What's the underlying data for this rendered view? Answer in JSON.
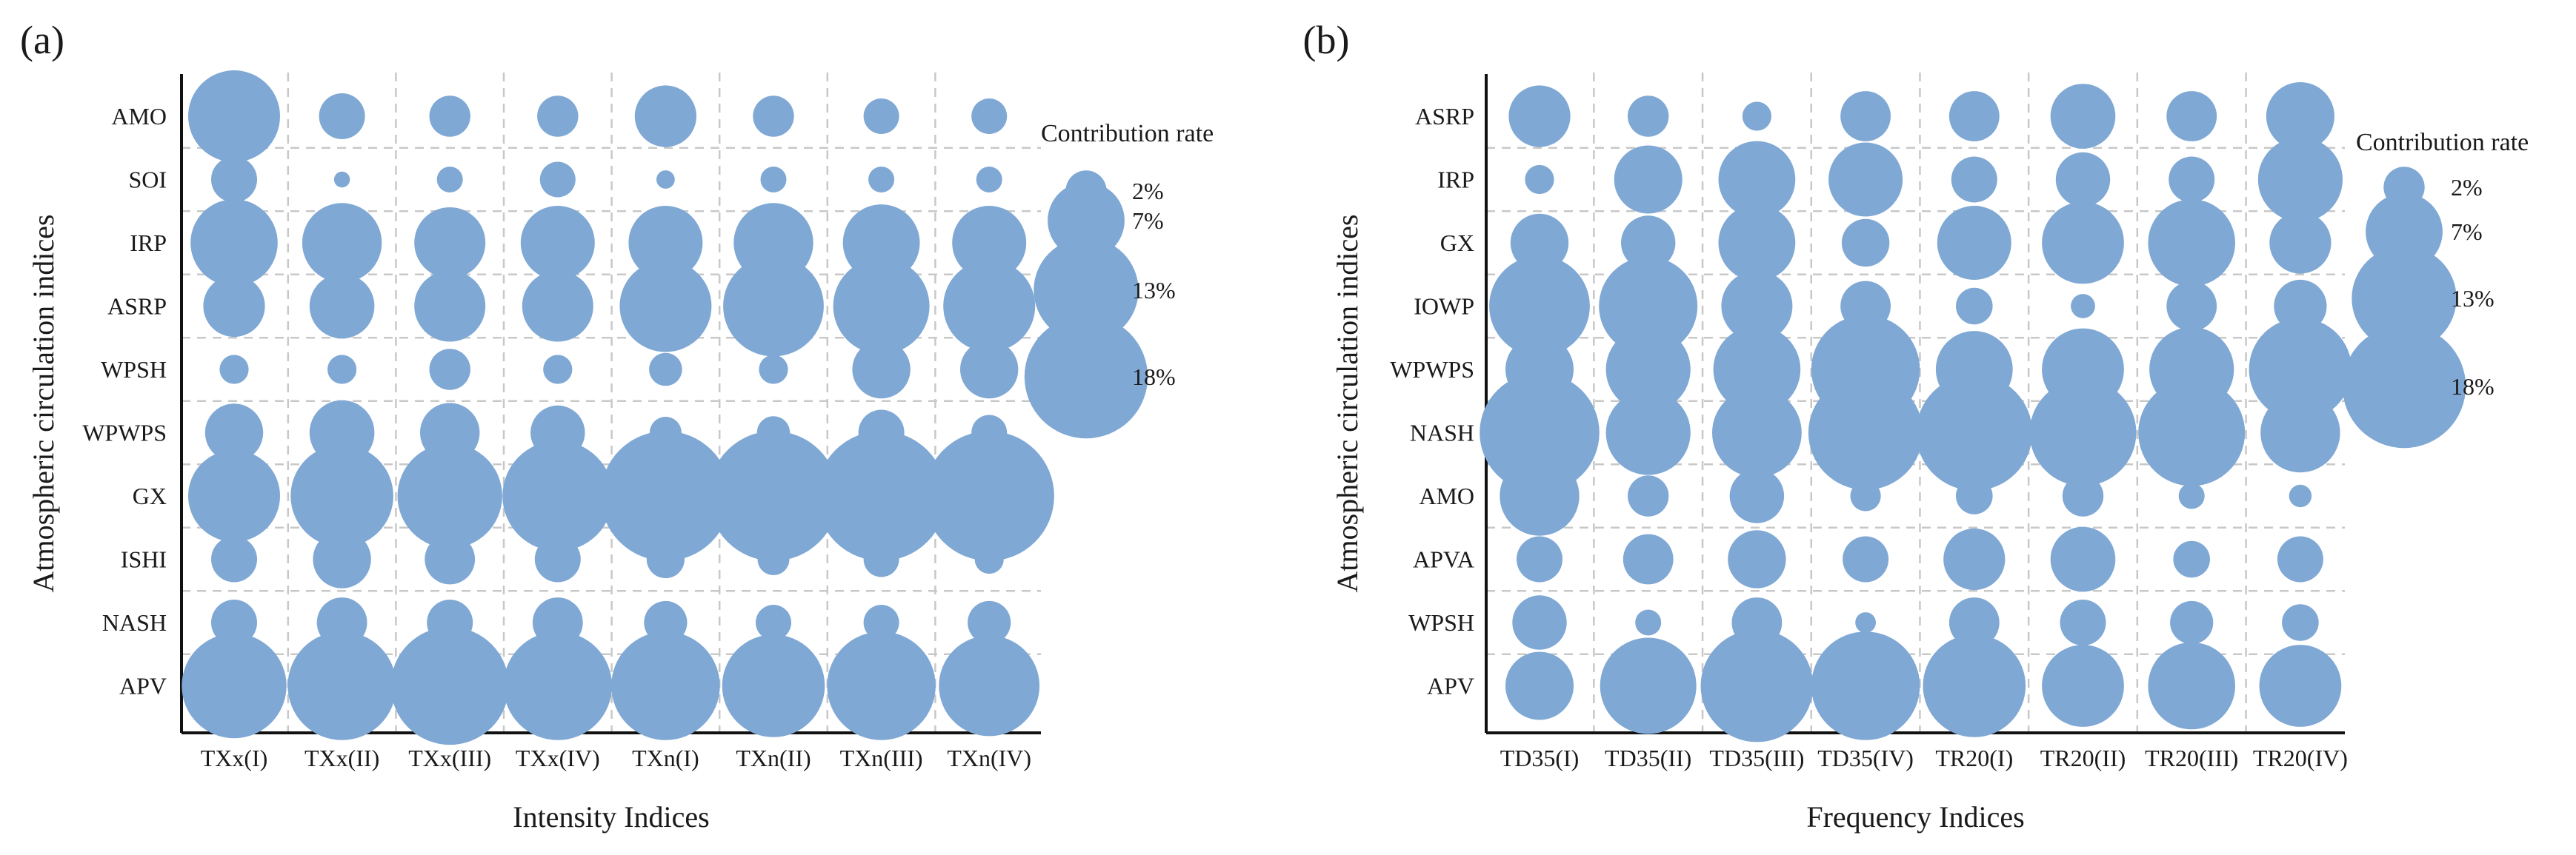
{
  "chart_data": [
    {
      "panel_label": "(a)",
      "type": "bubble-matrix",
      "xlabel": "Intensity Indices",
      "ylabel": "Atmospheric circulation indices",
      "categories_x": [
        "TXx(I)",
        "TXx(II)",
        "TXx(III)",
        "TXx(IV)",
        "TXn(I)",
        "TXn(II)",
        "TXn(III)",
        "TXn(IV)"
      ],
      "categories_y": [
        "AMO",
        "SOI",
        "IRP",
        "ASRP",
        "WPSH",
        "WPWPS",
        "GX",
        "ISHI",
        "NASH",
        "APV"
      ],
      "values": [
        [
          10,
          2.5,
          2,
          2,
          4.5,
          2,
          1.5,
          1.5
        ],
        [
          2.5,
          0.3,
          0.8,
          1.5,
          0.4,
          0.8,
          0.8,
          0.8
        ],
        [
          9,
          7.5,
          6,
          6.5,
          6.5,
          7.5,
          7,
          6.5
        ],
        [
          4.5,
          5,
          6,
          6,
          10,
          12,
          11,
          10
        ],
        [
          1,
          1,
          2,
          1,
          1.3,
          1,
          4,
          4
        ],
        [
          4,
          5,
          4.2,
          3.5,
          1.2,
          1.3,
          2.5,
          1.5
        ],
        [
          10,
          12.5,
          13,
          14.5,
          20,
          20,
          20,
          20
        ],
        [
          2.5,
          4,
          3,
          2.5,
          1.7,
          1.2,
          1.5,
          1
        ],
        [
          2.5,
          3,
          2.5,
          3,
          2.2,
          1.5,
          1.5,
          2.2
        ],
        [
          13,
          14,
          16.5,
          14,
          14,
          12.5,
          14,
          12
        ]
      ],
      "legend": {
        "title": "Contribution rate",
        "sizes": [
          2,
          7,
          13,
          18
        ],
        "labels": [
          "2%",
          "7%",
          "13%",
          "18%"
        ]
      }
    },
    {
      "panel_label": "(b)",
      "type": "bubble-matrix",
      "xlabel": "Frequency Indices",
      "ylabel": "Atmospheric circulation indices",
      "categories_x": [
        "TD35(I)",
        "TD35(II)",
        "TD35(III)",
        "TD35(IV)",
        "TR20(I)",
        "TR20(II)",
        "TR20(III)",
        "TR20(IV)"
      ],
      "categories_y": [
        "ASRP",
        "IRP",
        "GX",
        "IOWP",
        "WPWPS",
        "NASH",
        "AMO",
        "APVA",
        "WPSH",
        "APV"
      ],
      "values": [
        [
          4.5,
          2,
          1,
          3,
          3,
          5,
          3,
          5.5
        ],
        [
          1,
          5.5,
          7,
          6.5,
          2.5,
          3.5,
          2.5,
          8.5
        ],
        [
          4,
          3.5,
          7,
          2.7,
          6.5,
          8,
          9,
          4.5
        ],
        [
          12,
          11.5,
          6,
          3,
          1.6,
          0.7,
          3,
          3.3
        ],
        [
          5.5,
          8.5,
          9,
          14,
          7,
          8,
          8.5,
          12.5
        ],
        [
          17,
          8.5,
          9.5,
          15.5,
          16,
          13.5,
          13.5,
          7.5
        ],
        [
          7.5,
          2,
          3.5,
          1.1,
          1.6,
          2,
          0.8,
          0.6
        ],
        [
          2.5,
          3,
          4,
          2.5,
          4.5,
          5,
          1.6,
          2.5
        ],
        [
          3.5,
          0.8,
          3,
          0.5,
          3,
          2.5,
          2.2,
          1.6
        ],
        [
          5.5,
          11,
          15,
          14,
          12.5,
          8,
          9,
          8
        ]
      ],
      "legend": {
        "title": "Contribution rate",
        "sizes": [
          2,
          7,
          13,
          18
        ],
        "labels": [
          "2%",
          "7%",
          "13%",
          "18%"
        ]
      }
    }
  ]
}
